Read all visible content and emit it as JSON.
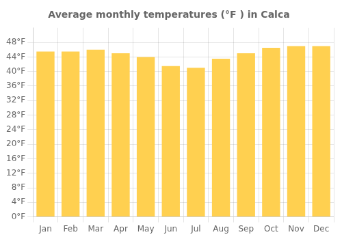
{
  "chart_data": {
    "type": "bar",
    "title": "Average monthly temperatures (°F ) in Calca",
    "categories": [
      "Jan",
      "Feb",
      "Mar",
      "Apr",
      "May",
      "Jun",
      "Jul",
      "Aug",
      "Sep",
      "Oct",
      "Nov",
      "Dec"
    ],
    "values": [
      45.5,
      45.5,
      46.0,
      45.0,
      44.0,
      41.5,
      41.0,
      43.5,
      45.0,
      46.5,
      47.0,
      47.0
    ],
    "color": "#FFD050",
    "ylim": [
      0,
      52
    ],
    "yticks": [
      {
        "value": 0,
        "label": "0°F"
      },
      {
        "value": 4,
        "label": "4°F"
      },
      {
        "value": 8,
        "label": "8°F"
      },
      {
        "value": 12,
        "label": "12°F"
      },
      {
        "value": 16,
        "label": "16°F"
      },
      {
        "value": 20,
        "label": "20°F"
      },
      {
        "value": 24,
        "label": "24°F"
      },
      {
        "value": 28,
        "label": "28°F"
      },
      {
        "value": 32,
        "label": "32°F"
      },
      {
        "value": 36,
        "label": "36°F"
      },
      {
        "value": 40,
        "label": "40°F"
      },
      {
        "value": 44,
        "label": "44°F"
      },
      {
        "value": 48,
        "label": "48°F"
      }
    ],
    "grid": true
  }
}
